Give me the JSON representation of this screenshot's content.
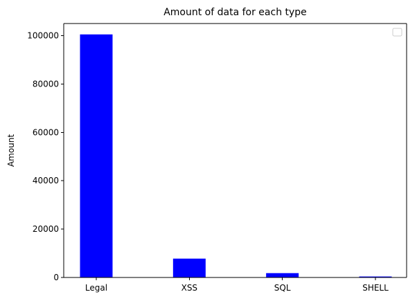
{
  "chart_data": {
    "type": "bar",
    "title": "Amount of data for each type",
    "xlabel": "",
    "ylabel": "Amount",
    "categories": [
      "Legal",
      "XSS",
      "SQL",
      "SHELL"
    ],
    "values": [
      100500,
      7800,
      1800,
      400
    ],
    "ylim": [
      0,
      105000
    ],
    "yticks": [
      0,
      20000,
      40000,
      60000,
      80000,
      100000
    ],
    "ytick_labels": [
      "0",
      "20000",
      "40000",
      "60000",
      "80000",
      "100000"
    ],
    "bar_color": "#0000ff",
    "grid": false,
    "legend": {
      "placement": "top-right",
      "entries": []
    }
  }
}
